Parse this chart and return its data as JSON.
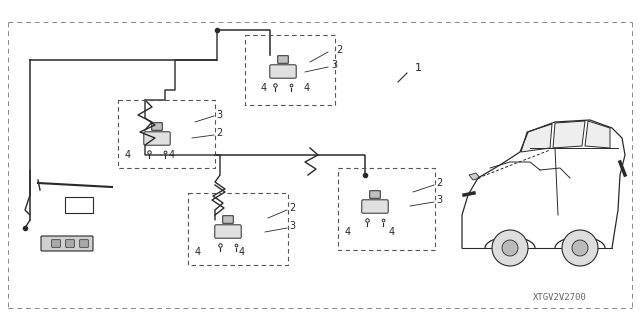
{
  "background_color": "#ffffff",
  "diagram_code": "XTGV2V2700",
  "diagram_code_fontsize": 6.5,
  "fig_width": 6.4,
  "fig_height": 3.2,
  "dpi": 100,
  "gray": "#2a2a2a",
  "lgray": "#555555",
  "dgray": "#444444"
}
